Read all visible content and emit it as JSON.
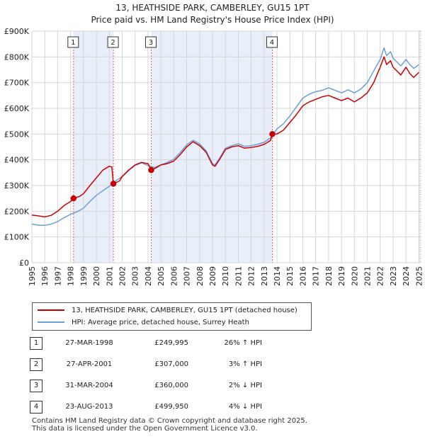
{
  "title_line1": "13, HEATHSIDE PARK, CAMBERLEY, GU15 1PT",
  "title_line2": "Price paid vs. HM Land Registry's House Price Index (HPI)",
  "legend": {
    "property_label": "13, HEATHSIDE PARK, CAMBERLEY, GU15 1PT (detached house)",
    "hpi_label": "HPI: Average price, detached house, Surrey Heath"
  },
  "colors": {
    "property_line": "#cc0000",
    "hpi_line": "#6a9fd8",
    "shade": "#e8eefa",
    "marker_line": "#e06060",
    "grid": "#d6d6d6"
  },
  "sales": [
    {
      "num": "1",
      "date": "27-MAR-1998",
      "price": "£249,995",
      "hpi": "26% ↑ HPI"
    },
    {
      "num": "2",
      "date": "27-APR-2001",
      "price": "£307,000",
      "hpi": "3% ↑ HPI"
    },
    {
      "num": "3",
      "date": "31-MAR-2004",
      "price": "£360,000",
      "hpi": "2% ↓ HPI"
    },
    {
      "num": "4",
      "date": "23-AUG-2013",
      "price": "£499,950",
      "hpi": "4% ↓ HPI"
    }
  ],
  "footer_line1": "Contains HM Land Registry data © Crown copyright and database right 2025.",
  "footer_line2": "This data is licensed under the Open Government Licence v3.0.",
  "chart_data": {
    "type": "line",
    "xlim": [
      1995,
      2025.2
    ],
    "ylim": [
      0,
      900000
    ],
    "yticks": [
      0,
      100000,
      200000,
      300000,
      400000,
      500000,
      600000,
      700000,
      800000,
      900000
    ],
    "ytick_labels": [
      "£0",
      "£100K",
      "£200K",
      "£300K",
      "£400K",
      "£500K",
      "£600K",
      "£700K",
      "£800K",
      "£900K"
    ],
    "xticks": [
      "1995",
      "1996",
      "1997",
      "1998",
      "1999",
      "2000",
      "2001",
      "2002",
      "2003",
      "2004",
      "2005",
      "2006",
      "2007",
      "2008",
      "2009",
      "2010",
      "2011",
      "2012",
      "2013",
      "2014",
      "2015",
      "2016",
      "2017",
      "2018",
      "2019",
      "2020",
      "2021",
      "2022",
      "2023",
      "2024",
      "2025"
    ],
    "sale_points": [
      {
        "label": "1",
        "x": 1998.23,
        "y": 249995
      },
      {
        "label": "2",
        "x": 2001.32,
        "y": 307000
      },
      {
        "label": "3",
        "x": 2004.25,
        "y": 360000
      },
      {
        "label": "4",
        "x": 2013.64,
        "y": 499950
      }
    ],
    "shaded_ranges": [
      [
        1998.23,
        2001.32
      ],
      [
        2004.25,
        2013.64
      ]
    ],
    "series": [
      {
        "name": "13, HEATHSIDE PARK, CAMBERLEY, GU15 1PT (detached house)",
        "x": [
          1995,
          1995.5,
          1996,
          1996.5,
          1997,
          1997.5,
          1998,
          1998.23,
          1998.7,
          1999,
          1999.5,
          2000,
          2000.5,
          2001,
          2001.2,
          2001.32,
          2001.8,
          2002,
          2002.5,
          2003,
          2003.5,
          2004,
          2004.25,
          2004.6,
          2005,
          2005.5,
          2006,
          2006.5,
          2007,
          2007.5,
          2008,
          2008.5,
          2009,
          2009.2,
          2009.6,
          2010,
          2010.5,
          2011,
          2011.5,
          2012,
          2012.5,
          2013,
          2013.5,
          2013.64,
          2014,
          2014.5,
          2015,
          2015.5,
          2016,
          2016.5,
          2017,
          2017.5,
          2018,
          2018.5,
          2019,
          2019.5,
          2020,
          2020.5,
          2021,
          2021.5,
          2022,
          2022.3,
          2022.5,
          2022.8,
          2023,
          2023.3,
          2023.6,
          2024,
          2024.3,
          2024.6,
          2025
        ],
        "values": [
          185000,
          182000,
          178000,
          184000,
          200000,
          222000,
          238000,
          249995,
          258000,
          268000,
          300000,
          330000,
          360000,
          375000,
          372000,
          307000,
          318000,
          335000,
          360000,
          380000,
          390000,
          385000,
          360000,
          368000,
          380000,
          385000,
          395000,
          420000,
          450000,
          470000,
          455000,
          430000,
          380000,
          375000,
          405000,
          440000,
          450000,
          455000,
          445000,
          448000,
          452000,
          460000,
          475000,
          499950,
          500000,
          515000,
          545000,
          575000,
          610000,
          625000,
          635000,
          645000,
          650000,
          640000,
          630000,
          640000,
          625000,
          640000,
          660000,
          700000,
          760000,
          800000,
          770000,
          785000,
          760000,
          745000,
          730000,
          760000,
          735000,
          720000,
          740000
        ]
      },
      {
        "name": "HPI: Average price, detached house, Surrey Heath",
        "x": [
          1995,
          1995.5,
          1996,
          1996.5,
          1997,
          1997.5,
          1998,
          1998.5,
          1999,
          1999.5,
          2000,
          2000.5,
          2001,
          2001.5,
          2002,
          2002.5,
          2003,
          2003.5,
          2004,
          2004.5,
          2005,
          2005.5,
          2006,
          2006.5,
          2007,
          2007.5,
          2008,
          2008.5,
          2009,
          2009.2,
          2009.6,
          2010,
          2010.5,
          2011,
          2011.5,
          2012,
          2012.5,
          2013,
          2013.5,
          2014,
          2014.5,
          2015,
          2015.5,
          2016,
          2016.5,
          2017,
          2017.5,
          2018,
          2018.5,
          2019,
          2019.5,
          2020,
          2020.5,
          2021,
          2021.5,
          2022,
          2022.3,
          2022.5,
          2022.8,
          2023,
          2023.3,
          2023.6,
          2024,
          2024.3,
          2024.6,
          2025
        ],
        "values": [
          150000,
          146000,
          145000,
          150000,
          160000,
          175000,
          188000,
          198000,
          212000,
          238000,
          262000,
          280000,
          297000,
          318000,
          335000,
          358000,
          378000,
          388000,
          378000,
          370000,
          380000,
          390000,
          402000,
          428000,
          458000,
          476000,
          462000,
          435000,
          385000,
          380000,
          410000,
          445000,
          455000,
          462000,
          452000,
          455000,
          460000,
          468000,
          485000,
          520000,
          540000,
          570000,
          605000,
          640000,
          655000,
          665000,
          670000,
          680000,
          670000,
          660000,
          672000,
          660000,
          675000,
          700000,
          745000,
          790000,
          835000,
          805000,
          820000,
          795000,
          780000,
          765000,
          790000,
          770000,
          755000,
          770000
        ]
      }
    ]
  }
}
